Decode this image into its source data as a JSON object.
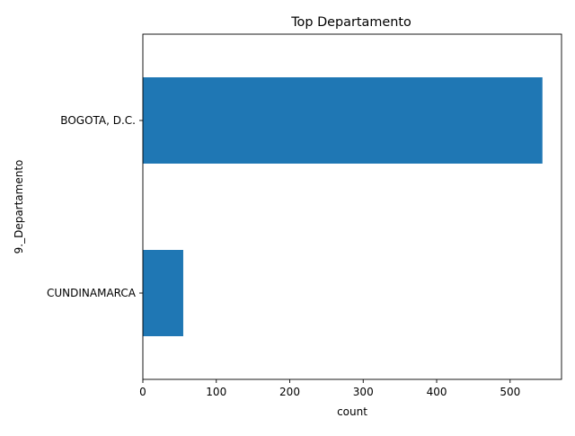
{
  "chart_data": {
    "type": "bar",
    "orientation": "horizontal",
    "title": "Top Departamento",
    "xlabel": "count",
    "ylabel": "9._Departamento",
    "categories": [
      "BOGOTA, D.C.",
      "CUNDINAMARCA"
    ],
    "values": [
      544,
      55
    ],
    "xlim": [
      0,
      570
    ],
    "xticks": [
      0,
      100,
      200,
      300,
      400,
      500
    ],
    "grid": false,
    "legend": "none",
    "bar_color": "#1f77b4"
  }
}
